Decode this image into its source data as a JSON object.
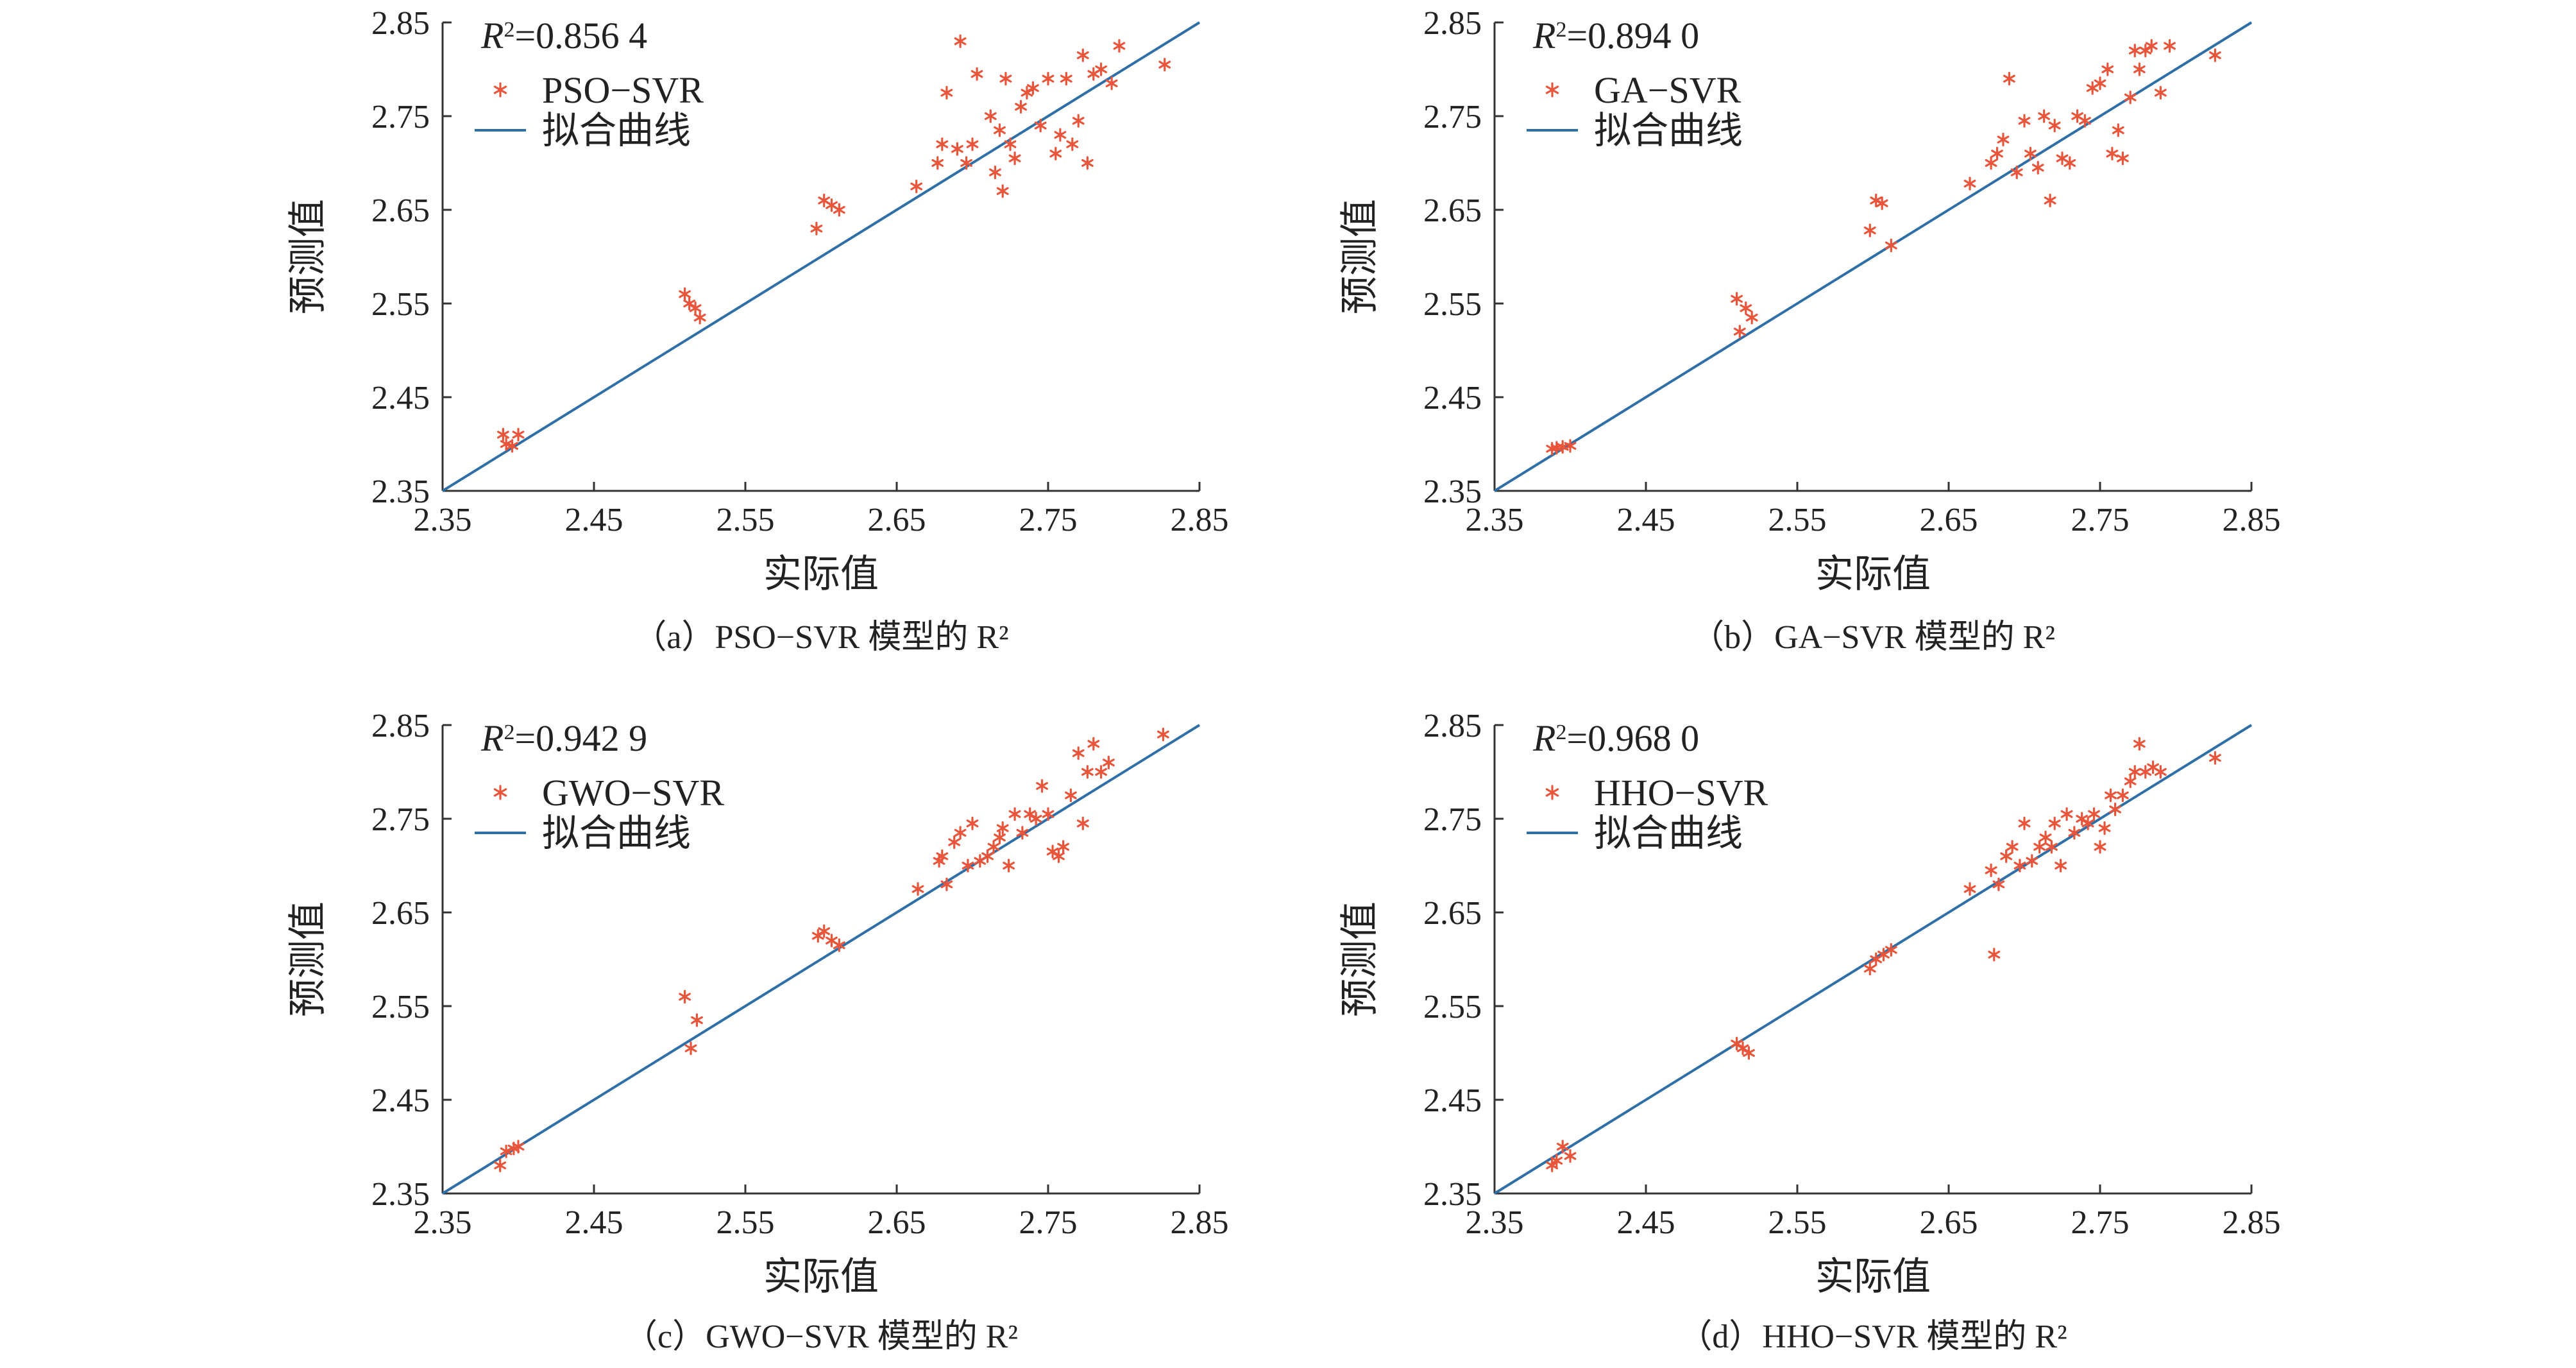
{
  "chart_data": [
    {
      "type": "scatter",
      "caption": "（a）PSO−SVR 模型的 R²",
      "r2_label": "=0.856 4",
      "xlabel": "实际值",
      "ylabel": "预测值",
      "xlim": [
        2.35,
        2.85
      ],
      "ylim": [
        2.35,
        2.85
      ],
      "xticks": [
        "2.35",
        "2.45",
        "2.55",
        "2.65",
        "2.75",
        "2.85"
      ],
      "yticks": [
        "2.35",
        "2.45",
        "2.55",
        "2.65",
        "2.75",
        "2.85"
      ],
      "legend": {
        "points": "PSO−SVR",
        "line": "拟合曲线",
        "position": "top-left"
      },
      "fit_line": [
        [
          2.35,
          2.35
        ],
        [
          2.85,
          2.85
        ]
      ],
      "points": [
        [
          2.39,
          2.41
        ],
        [
          2.392,
          2.4
        ],
        [
          2.396,
          2.398
        ],
        [
          2.4,
          2.41
        ],
        [
          2.51,
          2.56
        ],
        [
          2.513,
          2.55
        ],
        [
          2.517,
          2.545
        ],
        [
          2.52,
          2.535
        ],
        [
          2.597,
          2.63
        ],
        [
          2.602,
          2.66
        ],
        [
          2.607,
          2.655
        ],
        [
          2.612,
          2.65
        ],
        [
          2.663,
          2.675
        ],
        [
          2.677,
          2.7
        ],
        [
          2.68,
          2.72
        ],
        [
          2.683,
          2.775
        ],
        [
          2.69,
          2.715
        ],
        [
          2.692,
          2.83
        ],
        [
          2.696,
          2.7
        ],
        [
          2.7,
          2.72
        ],
        [
          2.703,
          2.795
        ],
        [
          2.712,
          2.75
        ],
        [
          2.715,
          2.69
        ],
        [
          2.718,
          2.735
        ],
        [
          2.72,
          2.67
        ],
        [
          2.722,
          2.79
        ],
        [
          2.725,
          2.72
        ],
        [
          2.728,
          2.705
        ],
        [
          2.732,
          2.76
        ],
        [
          2.736,
          2.775
        ],
        [
          2.74,
          2.78
        ],
        [
          2.745,
          2.74
        ],
        [
          2.75,
          2.79
        ],
        [
          2.755,
          2.71
        ],
        [
          2.758,
          2.73
        ],
        [
          2.762,
          2.79
        ],
        [
          2.766,
          2.72
        ],
        [
          2.77,
          2.745
        ],
        [
          2.773,
          2.815
        ],
        [
          2.776,
          2.7
        ],
        [
          2.78,
          2.795
        ],
        [
          2.785,
          2.8
        ],
        [
          2.792,
          2.785
        ],
        [
          2.797,
          2.825
        ],
        [
          2.827,
          2.805
        ]
      ]
    },
    {
      "type": "scatter",
      "caption": "（b）GA−SVR 模型的 R²",
      "r2_label": "=0.894 0",
      "xlabel": "实际值",
      "ylabel": "预测值",
      "xlim": [
        2.35,
        2.85
      ],
      "ylim": [
        2.35,
        2.85
      ],
      "xticks": [
        "2.35",
        "2.45",
        "2.55",
        "2.65",
        "2.75",
        "2.85"
      ],
      "yticks": [
        "2.35",
        "2.45",
        "2.55",
        "2.65",
        "2.75",
        "2.85"
      ],
      "legend": {
        "points": "GA−SVR",
        "line": "拟合曲线",
        "position": "top-left"
      },
      "fit_line": [
        [
          2.35,
          2.35
        ],
        [
          2.85,
          2.85
        ]
      ],
      "points": [
        [
          2.388,
          2.395
        ],
        [
          2.391,
          2.396
        ],
        [
          2.395,
          2.397
        ],
        [
          2.4,
          2.398
        ],
        [
          2.51,
          2.555
        ],
        [
          2.512,
          2.52
        ],
        [
          2.516,
          2.545
        ],
        [
          2.52,
          2.535
        ],
        [
          2.598,
          2.628
        ],
        [
          2.602,
          2.66
        ],
        [
          2.606,
          2.657
        ],
        [
          2.612,
          2.612
        ],
        [
          2.664,
          2.678
        ],
        [
          2.678,
          2.7
        ],
        [
          2.682,
          2.71
        ],
        [
          2.686,
          2.725
        ],
        [
          2.69,
          2.79
        ],
        [
          2.695,
          2.69
        ],
        [
          2.7,
          2.745
        ],
        [
          2.704,
          2.71
        ],
        [
          2.709,
          2.695
        ],
        [
          2.713,
          2.75
        ],
        [
          2.717,
          2.66
        ],
        [
          2.72,
          2.74
        ],
        [
          2.725,
          2.705
        ],
        [
          2.73,
          2.7
        ],
        [
          2.735,
          2.75
        ],
        [
          2.74,
          2.745
        ],
        [
          2.745,
          2.78
        ],
        [
          2.75,
          2.785
        ],
        [
          2.755,
          2.8
        ],
        [
          2.758,
          2.71
        ],
        [
          2.762,
          2.735
        ],
        [
          2.765,
          2.705
        ],
        [
          2.77,
          2.77
        ],
        [
          2.773,
          2.82
        ],
        [
          2.776,
          2.8
        ],
        [
          2.78,
          2.82
        ],
        [
          2.784,
          2.825
        ],
        [
          2.79,
          2.775
        ],
        [
          2.796,
          2.825
        ],
        [
          2.826,
          2.815
        ]
      ]
    },
    {
      "type": "scatter",
      "caption": "（c）GWO−SVR 模型的 R²",
      "r2_label": "=0.942 9",
      "xlabel": "实际值",
      "ylabel": "预测值",
      "xlim": [
        2.35,
        2.85
      ],
      "ylim": [
        2.35,
        2.85
      ],
      "xticks": [
        "2.35",
        "2.45",
        "2.55",
        "2.65",
        "2.75",
        "2.85"
      ],
      "yticks": [
        "2.35",
        "2.45",
        "2.55",
        "2.65",
        "2.75",
        "2.85"
      ],
      "legend": {
        "points": "GWO−SVR",
        "line": "拟合曲线",
        "position": "top-left"
      },
      "fit_line": [
        [
          2.35,
          2.35
        ],
        [
          2.85,
          2.85
        ]
      ],
      "points": [
        [
          2.388,
          2.38
        ],
        [
          2.392,
          2.395
        ],
        [
          2.397,
          2.398
        ],
        [
          2.4,
          2.4
        ],
        [
          2.51,
          2.56
        ],
        [
          2.514,
          2.505
        ],
        [
          2.518,
          2.535
        ],
        [
          2.598,
          2.625
        ],
        [
          2.602,
          2.63
        ],
        [
          2.607,
          2.62
        ],
        [
          2.612,
          2.615
        ],
        [
          2.664,
          2.675
        ],
        [
          2.678,
          2.705
        ],
        [
          2.68,
          2.71
        ],
        [
          2.683,
          2.68
        ],
        [
          2.688,
          2.725
        ],
        [
          2.692,
          2.735
        ],
        [
          2.697,
          2.7
        ],
        [
          2.7,
          2.745
        ],
        [
          2.705,
          2.705
        ],
        [
          2.71,
          2.71
        ],
        [
          2.714,
          2.72
        ],
        [
          2.718,
          2.73
        ],
        [
          2.72,
          2.74
        ],
        [
          2.724,
          2.7
        ],
        [
          2.728,
          2.755
        ],
        [
          2.733,
          2.735
        ],
        [
          2.738,
          2.755
        ],
        [
          2.742,
          2.75
        ],
        [
          2.746,
          2.785
        ],
        [
          2.75,
          2.755
        ],
        [
          2.753,
          2.715
        ],
        [
          2.757,
          2.71
        ],
        [
          2.76,
          2.72
        ],
        [
          2.765,
          2.775
        ],
        [
          2.77,
          2.82
        ],
        [
          2.773,
          2.745
        ],
        [
          2.776,
          2.8
        ],
        [
          2.78,
          2.83
        ],
        [
          2.785,
          2.8
        ],
        [
          2.79,
          2.81
        ],
        [
          2.826,
          2.84
        ]
      ]
    },
    {
      "type": "scatter",
      "caption": "（d）HHO−SVR 模型的 R²",
      "r2_label": "=0.968 0",
      "xlabel": "实际值",
      "ylabel": "预测值",
      "xlim": [
        2.35,
        2.85
      ],
      "ylim": [
        2.35,
        2.85
      ],
      "xticks": [
        "2.35",
        "2.45",
        "2.55",
        "2.65",
        "2.75",
        "2.85"
      ],
      "yticks": [
        "2.35",
        "2.45",
        "2.55",
        "2.65",
        "2.75",
        "2.85"
      ],
      "legend": {
        "points": "HHO−SVR",
        "line": "拟合曲线",
        "position": "top-left"
      },
      "fit_line": [
        [
          2.35,
          2.35
        ],
        [
          2.85,
          2.85
        ]
      ],
      "points": [
        [
          2.388,
          2.38
        ],
        [
          2.391,
          2.385
        ],
        [
          2.395,
          2.4
        ],
        [
          2.4,
          2.39
        ],
        [
          2.51,
          2.51
        ],
        [
          2.514,
          2.505
        ],
        [
          2.518,
          2.5
        ],
        [
          2.598,
          2.59
        ],
        [
          2.602,
          2.6
        ],
        [
          2.607,
          2.605
        ],
        [
          2.612,
          2.61
        ],
        [
          2.664,
          2.675
        ],
        [
          2.678,
          2.695
        ],
        [
          2.68,
          2.605
        ],
        [
          2.683,
          2.68
        ],
        [
          2.688,
          2.71
        ],
        [
          2.692,
          2.72
        ],
        [
          2.697,
          2.7
        ],
        [
          2.7,
          2.745
        ],
        [
          2.705,
          2.705
        ],
        [
          2.71,
          2.72
        ],
        [
          2.714,
          2.73
        ],
        [
          2.718,
          2.72
        ],
        [
          2.72,
          2.745
        ],
        [
          2.724,
          2.7
        ],
        [
          2.728,
          2.755
        ],
        [
          2.733,
          2.735
        ],
        [
          2.738,
          2.75
        ],
        [
          2.742,
          2.745
        ],
        [
          2.746,
          2.755
        ],
        [
          2.75,
          2.72
        ],
        [
          2.753,
          2.74
        ],
        [
          2.757,
          2.775
        ],
        [
          2.76,
          2.76
        ],
        [
          2.765,
          2.775
        ],
        [
          2.77,
          2.79
        ],
        [
          2.773,
          2.8
        ],
        [
          2.776,
          2.83
        ],
        [
          2.78,
          2.8
        ],
        [
          2.785,
          2.805
        ],
        [
          2.79,
          2.8
        ],
        [
          2.826,
          2.815
        ]
      ]
    }
  ],
  "colors": {
    "points": "#E8553A",
    "line": "#2F6FA8",
    "axis": "#333333"
  }
}
